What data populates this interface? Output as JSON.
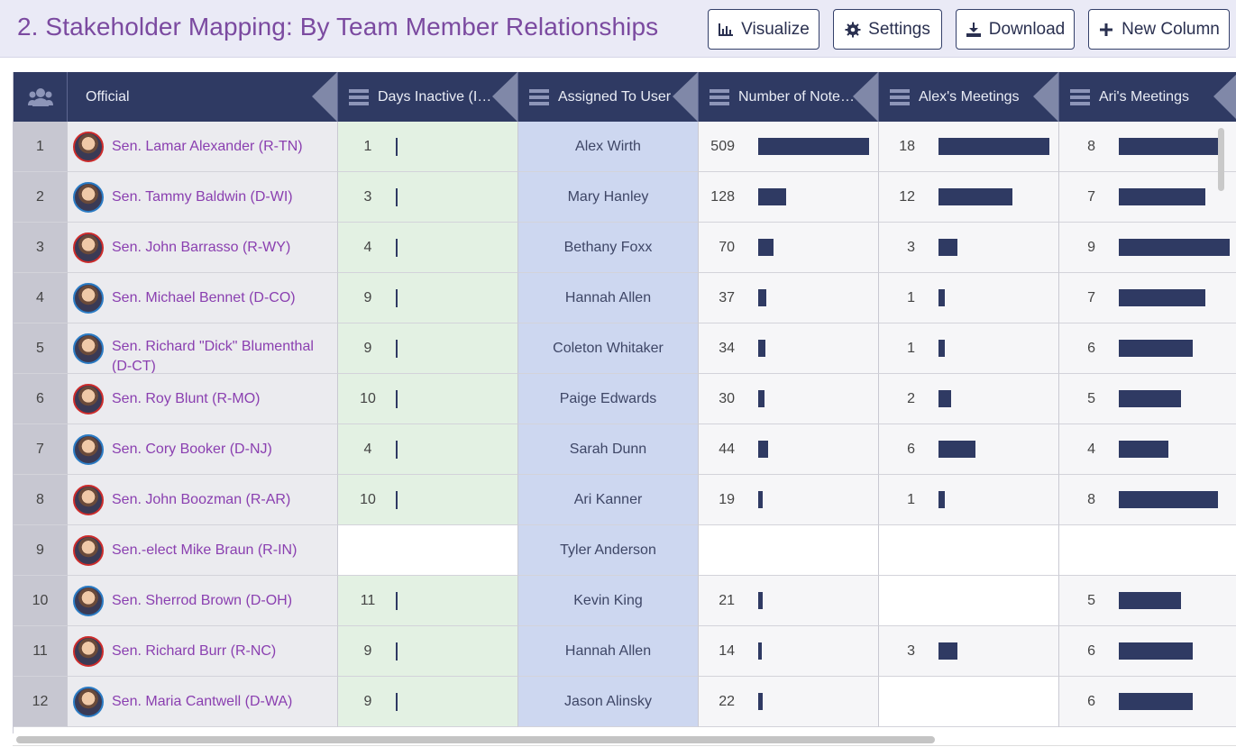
{
  "title": "2. Stakeholder Mapping: By Team Member Relationships",
  "toolbar": {
    "visualize": "Visualize",
    "settings": "Settings",
    "download": "Download",
    "new_column": "New Column"
  },
  "columns": {
    "official": "Official",
    "days_inactive": "Days Inactive (Individual)",
    "assigned_to": "Assigned To User",
    "notes": "Number of Notes Created",
    "alex": "Alex's Meetings",
    "ari": "Ari's Meetings"
  },
  "colors": {
    "header": "#2f3a63",
    "bar": "#2f3a63",
    "title": "#7b4aa0",
    "link": "#8a3fb0"
  },
  "rows": [
    {
      "idx": "1",
      "name": "Sen. Lamar Alexander (R-TN)",
      "party": "R",
      "days": "1",
      "user": "Alex Wirth",
      "notes": "509",
      "alex": "18",
      "ari": "8"
    },
    {
      "idx": "2",
      "name": "Sen. Tammy Baldwin (D-WI)",
      "party": "D",
      "days": "3",
      "user": "Mary Hanley",
      "notes": "128",
      "alex": "12",
      "ari": "7"
    },
    {
      "idx": "3",
      "name": "Sen. John Barrasso (R-WY)",
      "party": "R",
      "days": "4",
      "user": "Bethany Foxx",
      "notes": "70",
      "alex": "3",
      "ari": "9"
    },
    {
      "idx": "4",
      "name": "Sen. Michael Bennet (D-CO)",
      "party": "D",
      "days": "9",
      "user": "Hannah Allen",
      "notes": "37",
      "alex": "1",
      "ari": "7"
    },
    {
      "idx": "5",
      "name": "Sen. Richard \"Dick\" Blumenthal (D-CT)",
      "party": "D",
      "days": "9",
      "user": "Coleton Whitaker",
      "notes": "34",
      "alex": "1",
      "ari": "6"
    },
    {
      "idx": "6",
      "name": "Sen. Roy Blunt (R-MO)",
      "party": "R",
      "days": "10",
      "user": "Paige Edwards",
      "notes": "30",
      "alex": "2",
      "ari": "5"
    },
    {
      "idx": "7",
      "name": "Sen. Cory Booker (D-NJ)",
      "party": "D",
      "days": "4",
      "user": "Sarah Dunn",
      "notes": "44",
      "alex": "6",
      "ari": "4"
    },
    {
      "idx": "8",
      "name": "Sen. John Boozman (R-AR)",
      "party": "R",
      "days": "10",
      "user": "Ari Kanner",
      "notes": "19",
      "alex": "1",
      "ari": "8"
    },
    {
      "idx": "9",
      "name": "Sen.-elect Mike Braun (R-IN)",
      "party": "R",
      "days": "",
      "user": "Tyler Anderson",
      "notes": "",
      "alex": "",
      "ari": ""
    },
    {
      "idx": "10",
      "name": "Sen. Sherrod Brown (D-OH)",
      "party": "D",
      "days": "11",
      "user": "Kevin King",
      "notes": "21",
      "alex": "",
      "ari": "5"
    },
    {
      "idx": "11",
      "name": "Sen. Richard Burr (R-NC)",
      "party": "R",
      "days": "9",
      "user": "Hannah Allen",
      "notes": "14",
      "alex": "3",
      "ari": "6"
    },
    {
      "idx": "12",
      "name": "Sen. Maria Cantwell (D-WA)",
      "party": "D",
      "days": "9",
      "user": "Jason Alinsky",
      "notes": "22",
      "alex": "",
      "ari": "6"
    }
  ]
}
